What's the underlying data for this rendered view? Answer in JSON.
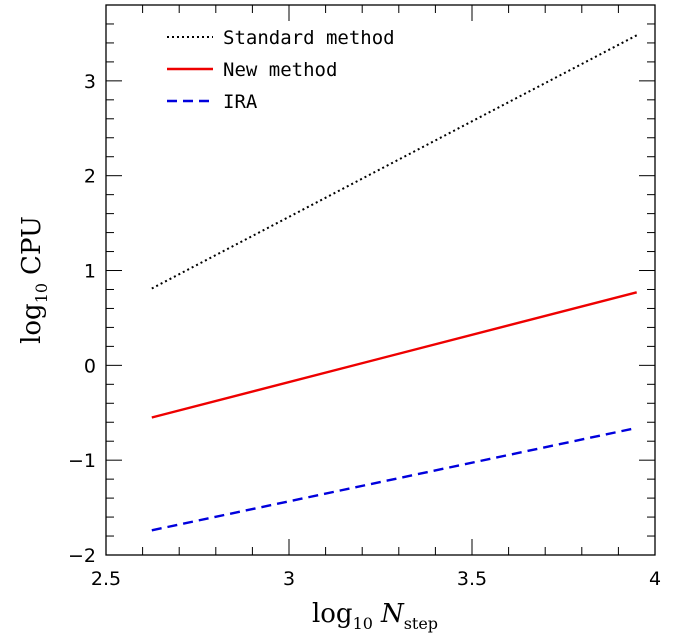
{
  "chart_data": {
    "type": "line",
    "xlabel_main": "log",
    "xlabel_sub": "10",
    "xlabel_var": "N",
    "xlabel_var_sub": "step",
    "ylabel_main": "log",
    "ylabel_sub": "10",
    "ylabel_var": "CPU",
    "xlim": [
      2.5,
      4.0
    ],
    "ylim": [
      -2,
      3.8
    ],
    "xticks": [
      2.5,
      3.0,
      3.5,
      4.0
    ],
    "xtick_labels": [
      "2.5",
      "3",
      "3.5",
      "4"
    ],
    "yticks": [
      -2,
      -1,
      0,
      1,
      2,
      3
    ],
    "ytick_labels": [
      "−2",
      "−1",
      "0",
      "1",
      "2",
      "3"
    ],
    "legend_position": "top-left",
    "series": [
      {
        "name": "Standard method",
        "color": "#000000",
        "dash": "dotted",
        "x": [
          2.625,
          3.95
        ],
        "y": [
          0.81,
          3.48
        ]
      },
      {
        "name": "New method",
        "color": "#ee0000",
        "dash": "solid",
        "x": [
          2.625,
          3.95
        ],
        "y": [
          -0.55,
          0.77
        ]
      },
      {
        "name": "IRA",
        "color": "#0000dd",
        "dash": "dashed",
        "x": [
          2.625,
          3.95
        ],
        "y": [
          -1.74,
          -0.66
        ]
      }
    ]
  }
}
